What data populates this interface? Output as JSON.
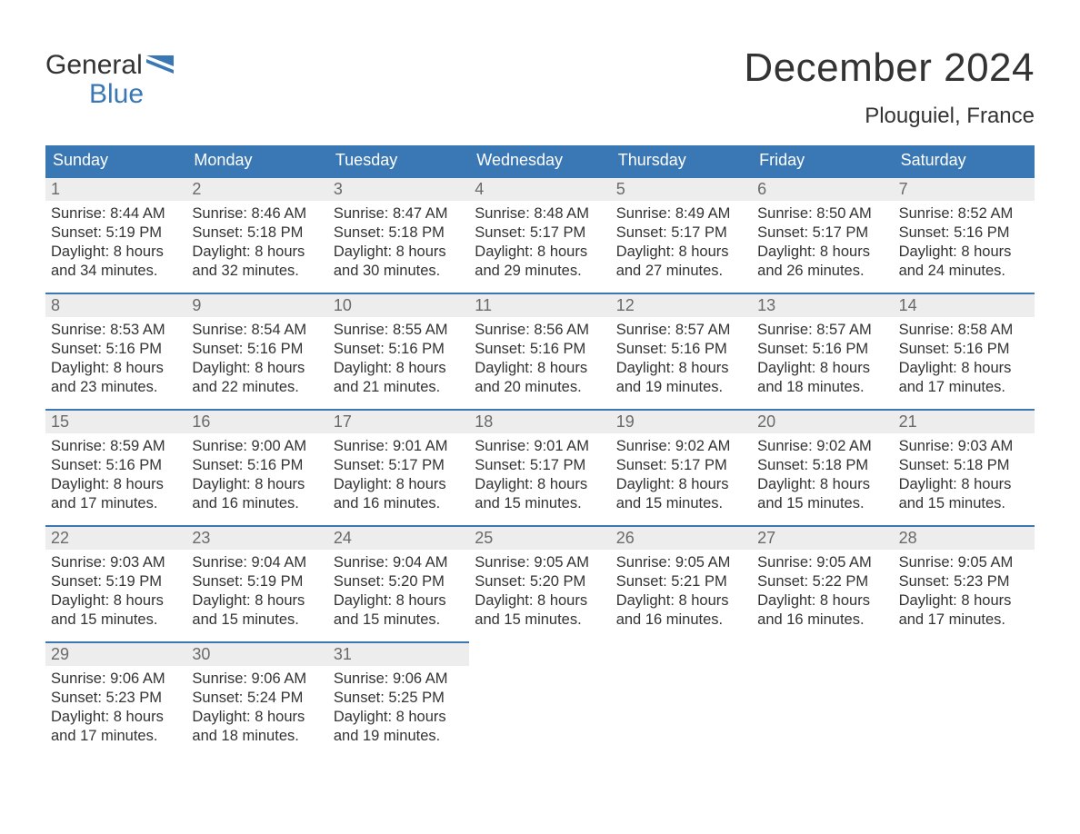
{
  "brand": {
    "line1": "General",
    "line2": "Blue",
    "accent_color": "#3a78b5"
  },
  "header": {
    "month_title": "December 2024",
    "location": "Plouguiel, France"
  },
  "colors": {
    "header_bg": "#3a78b5",
    "header_text": "#ffffff",
    "daynum_bg": "#ededed",
    "daynum_text": "#6a6a6a",
    "body_text": "#333333",
    "page_bg": "#ffffff",
    "week_border": "#3a78b5"
  },
  "fonts": {
    "title_pt": 44,
    "location_pt": 24,
    "dow_pt": 18,
    "daynum_pt": 18,
    "body_pt": 16.5
  },
  "days_of_week": [
    "Sunday",
    "Monday",
    "Tuesday",
    "Wednesday",
    "Thursday",
    "Friday",
    "Saturday"
  ],
  "calendar": {
    "type": "table",
    "columns": 7,
    "rows": 5,
    "days": [
      {
        "num": "1",
        "sunrise": "8:44 AM",
        "sunset": "5:19 PM",
        "daylight_hours": 8,
        "daylight_minutes": 34
      },
      {
        "num": "2",
        "sunrise": "8:46 AM",
        "sunset": "5:18 PM",
        "daylight_hours": 8,
        "daylight_minutes": 32
      },
      {
        "num": "3",
        "sunrise": "8:47 AM",
        "sunset": "5:18 PM",
        "daylight_hours": 8,
        "daylight_minutes": 30
      },
      {
        "num": "4",
        "sunrise": "8:48 AM",
        "sunset": "5:17 PM",
        "daylight_hours": 8,
        "daylight_minutes": 29
      },
      {
        "num": "5",
        "sunrise": "8:49 AM",
        "sunset": "5:17 PM",
        "daylight_hours": 8,
        "daylight_minutes": 27
      },
      {
        "num": "6",
        "sunrise": "8:50 AM",
        "sunset": "5:17 PM",
        "daylight_hours": 8,
        "daylight_minutes": 26
      },
      {
        "num": "7",
        "sunrise": "8:52 AM",
        "sunset": "5:16 PM",
        "daylight_hours": 8,
        "daylight_minutes": 24
      },
      {
        "num": "8",
        "sunrise": "8:53 AM",
        "sunset": "5:16 PM",
        "daylight_hours": 8,
        "daylight_minutes": 23
      },
      {
        "num": "9",
        "sunrise": "8:54 AM",
        "sunset": "5:16 PM",
        "daylight_hours": 8,
        "daylight_minutes": 22
      },
      {
        "num": "10",
        "sunrise": "8:55 AM",
        "sunset": "5:16 PM",
        "daylight_hours": 8,
        "daylight_minutes": 21
      },
      {
        "num": "11",
        "sunrise": "8:56 AM",
        "sunset": "5:16 PM",
        "daylight_hours": 8,
        "daylight_minutes": 20
      },
      {
        "num": "12",
        "sunrise": "8:57 AM",
        "sunset": "5:16 PM",
        "daylight_hours": 8,
        "daylight_minutes": 19
      },
      {
        "num": "13",
        "sunrise": "8:57 AM",
        "sunset": "5:16 PM",
        "daylight_hours": 8,
        "daylight_minutes": 18
      },
      {
        "num": "14",
        "sunrise": "8:58 AM",
        "sunset": "5:16 PM",
        "daylight_hours": 8,
        "daylight_minutes": 17
      },
      {
        "num": "15",
        "sunrise": "8:59 AM",
        "sunset": "5:16 PM",
        "daylight_hours": 8,
        "daylight_minutes": 17
      },
      {
        "num": "16",
        "sunrise": "9:00 AM",
        "sunset": "5:16 PM",
        "daylight_hours": 8,
        "daylight_minutes": 16
      },
      {
        "num": "17",
        "sunrise": "9:01 AM",
        "sunset": "5:17 PM",
        "daylight_hours": 8,
        "daylight_minutes": 16
      },
      {
        "num": "18",
        "sunrise": "9:01 AM",
        "sunset": "5:17 PM",
        "daylight_hours": 8,
        "daylight_minutes": 15
      },
      {
        "num": "19",
        "sunrise": "9:02 AM",
        "sunset": "5:17 PM",
        "daylight_hours": 8,
        "daylight_minutes": 15
      },
      {
        "num": "20",
        "sunrise": "9:02 AM",
        "sunset": "5:18 PM",
        "daylight_hours": 8,
        "daylight_minutes": 15
      },
      {
        "num": "21",
        "sunrise": "9:03 AM",
        "sunset": "5:18 PM",
        "daylight_hours": 8,
        "daylight_minutes": 15
      },
      {
        "num": "22",
        "sunrise": "9:03 AM",
        "sunset": "5:19 PM",
        "daylight_hours": 8,
        "daylight_minutes": 15
      },
      {
        "num": "23",
        "sunrise": "9:04 AM",
        "sunset": "5:19 PM",
        "daylight_hours": 8,
        "daylight_minutes": 15
      },
      {
        "num": "24",
        "sunrise": "9:04 AM",
        "sunset": "5:20 PM",
        "daylight_hours": 8,
        "daylight_minutes": 15
      },
      {
        "num": "25",
        "sunrise": "9:05 AM",
        "sunset": "5:20 PM",
        "daylight_hours": 8,
        "daylight_minutes": 15
      },
      {
        "num": "26",
        "sunrise": "9:05 AM",
        "sunset": "5:21 PM",
        "daylight_hours": 8,
        "daylight_minutes": 16
      },
      {
        "num": "27",
        "sunrise": "9:05 AM",
        "sunset": "5:22 PM",
        "daylight_hours": 8,
        "daylight_minutes": 16
      },
      {
        "num": "28",
        "sunrise": "9:05 AM",
        "sunset": "5:23 PM",
        "daylight_hours": 8,
        "daylight_minutes": 17
      },
      {
        "num": "29",
        "sunrise": "9:06 AM",
        "sunset": "5:23 PM",
        "daylight_hours": 8,
        "daylight_minutes": 17
      },
      {
        "num": "30",
        "sunrise": "9:06 AM",
        "sunset": "5:24 PM",
        "daylight_hours": 8,
        "daylight_minutes": 18
      },
      {
        "num": "31",
        "sunrise": "9:06 AM",
        "sunset": "5:25 PM",
        "daylight_hours": 8,
        "daylight_minutes": 19
      }
    ],
    "trailing_empty": 4
  },
  "labels": {
    "sunrise_prefix": "Sunrise: ",
    "sunset_prefix": "Sunset: ",
    "daylight_prefix": "Daylight: ",
    "hours_word": " hours",
    "and_word": "and ",
    "minutes_word": " minutes."
  }
}
